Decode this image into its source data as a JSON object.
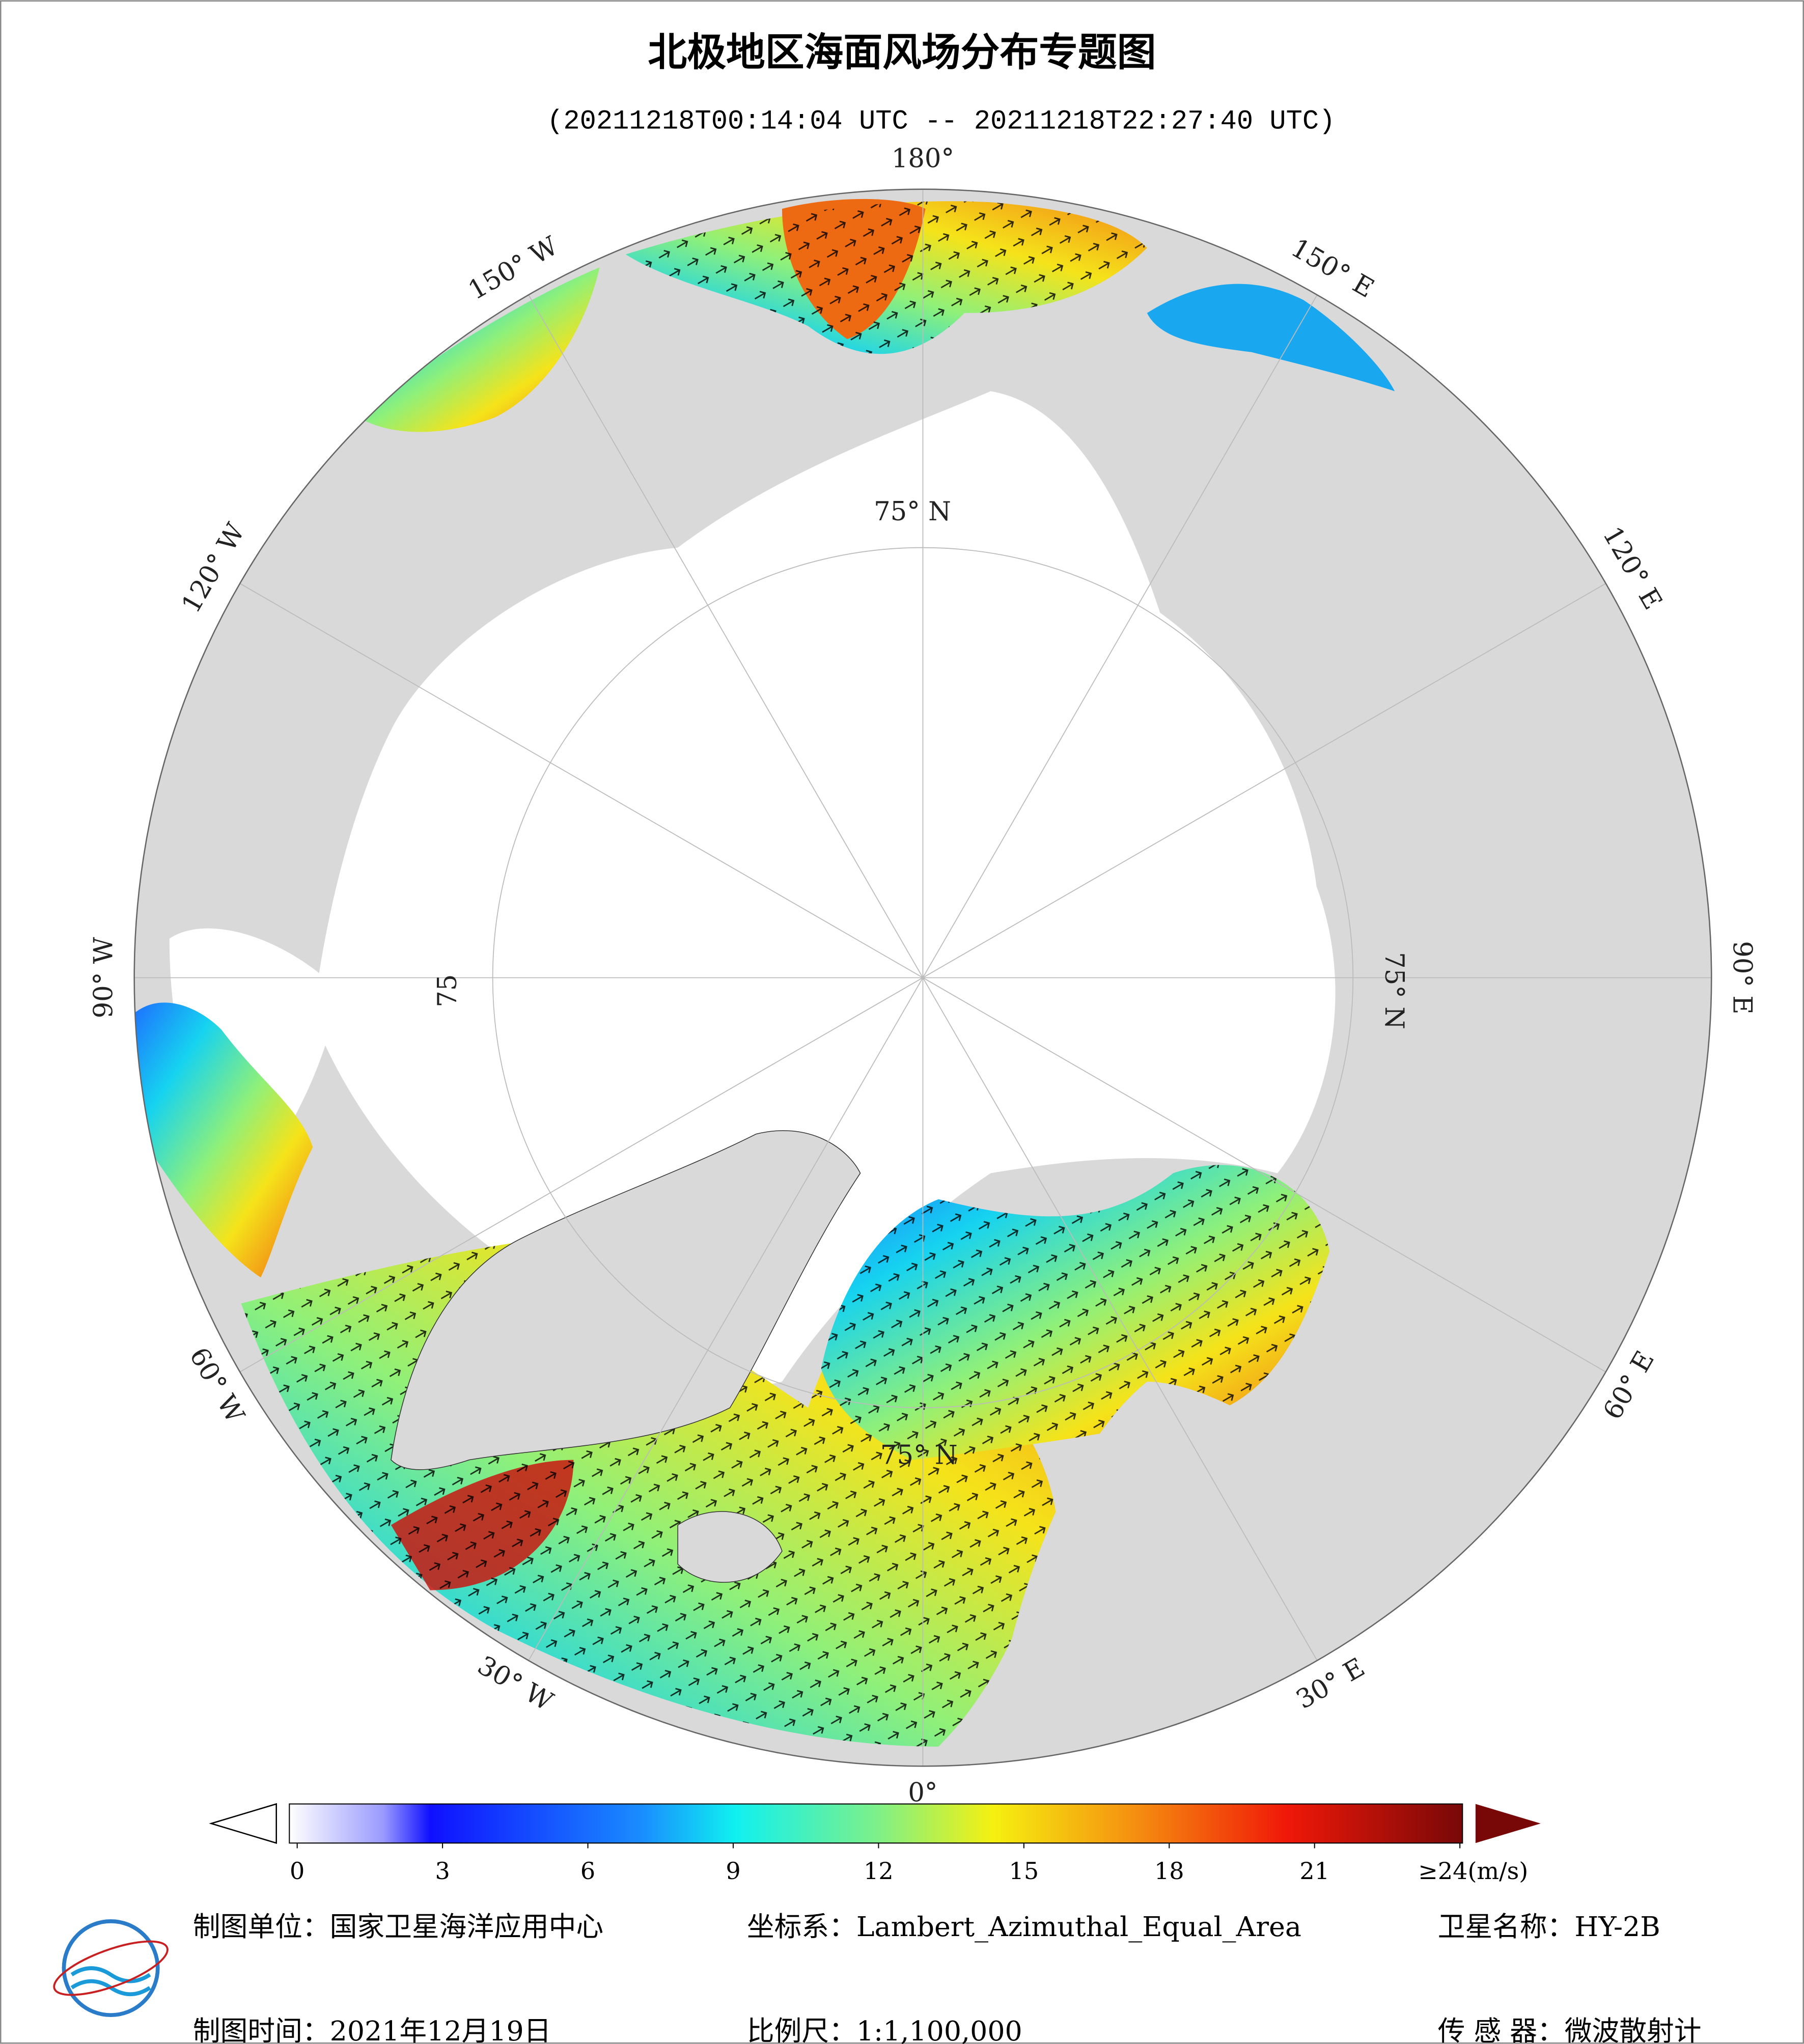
{
  "header": {
    "title": "北极地区海面风场分布专题图",
    "subtitle": "(20211218T00:14:04 UTC -- 20211218T22:27:40 UTC)"
  },
  "map": {
    "longitude_labels": [
      "180°",
      "150° E",
      "120° E",
      "90° E",
      "60° E",
      "30° E",
      "0°",
      "30° W",
      "60° W",
      "90° W",
      "120° W",
      "150° W"
    ],
    "latitude_labels": [
      "75° N",
      "75° N",
      "75",
      "75° N"
    ]
  },
  "colorbar": {
    "range": [
      0,
      24
    ],
    "ticks": [
      0,
      3,
      6,
      9,
      12,
      15,
      18,
      21,
      {
        "value": 24,
        "label": "≥24(m/s)"
      }
    ]
  },
  "footer": {
    "unit": "制图单位：国家卫星海洋应用中心",
    "crs": "坐标系：Lambert_Azimuthal_Equal_Area",
    "satellite": "卫星名称：HY-2B",
    "date": "制图时间：2021年12月19日",
    "scale": "比例尺：1:1,100,000",
    "sensor": "传 感 器：微波散射计"
  }
}
